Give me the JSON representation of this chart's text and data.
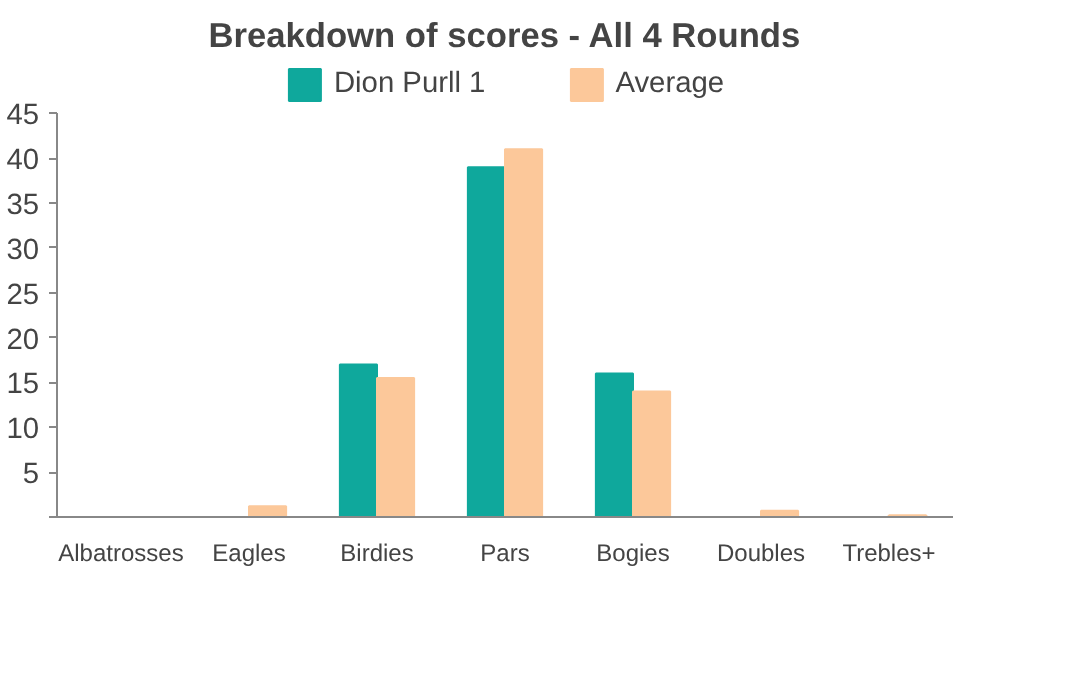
{
  "chart_data": {
    "type": "bar",
    "title": "Breakdown of scores - All 4 Rounds",
    "categories": [
      "Albatrosses",
      "Eagles",
      "Birdies",
      "Pars",
      "Bogies",
      "Doubles",
      "Trebles+"
    ],
    "series": [
      {
        "name": "Dion Purll 1",
        "color": "#0fa89c",
        "values": [
          0,
          0,
          17,
          39,
          16,
          0,
          0
        ]
      },
      {
        "name": "Average",
        "color": "#fcc89a",
        "values": [
          0,
          1.2,
          15.5,
          41,
          14,
          0.7,
          0.2
        ]
      }
    ],
    "ylim": [
      0,
      45
    ],
    "yticks": [
      {
        "value": 0,
        "label": null
      },
      5,
      10,
      15,
      20,
      25,
      30,
      35,
      40,
      45
    ],
    "grid": false,
    "legend": "top"
  }
}
